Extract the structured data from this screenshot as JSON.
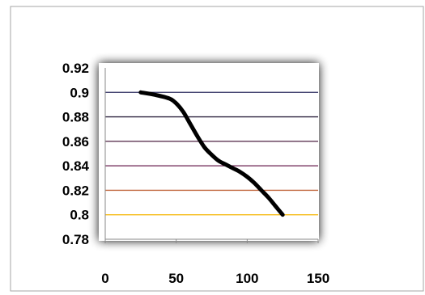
{
  "chart_data": {
    "type": "line",
    "title": "",
    "xlabel": "",
    "ylabel": "",
    "xlim": [
      0,
      150
    ],
    "ylim": [
      0.78,
      0.92
    ],
    "x_ticks": [
      0,
      50,
      100,
      150
    ],
    "x_tick_labels": [
      "0",
      "50",
      "100",
      "150"
    ],
    "y_ticks": [
      0.78,
      0.8,
      0.82,
      0.84,
      0.86,
      0.88,
      0.9,
      0.92
    ],
    "y_tick_labels": [
      "0.78",
      "0.8",
      "0.82",
      "0.84",
      "0.86",
      "0.88",
      "0.9",
      "0.92"
    ],
    "grid": true,
    "legend": "none",
    "series": [
      {
        "color": "#000000",
        "smooth": true,
        "x": [
          25,
          35,
          45,
          50,
          55,
          60,
          65,
          70,
          75,
          80,
          85,
          90,
          95,
          100,
          105,
          110,
          115,
          120,
          125
        ],
        "y": [
          0.9,
          0.898,
          0.895,
          0.891,
          0.884,
          0.874,
          0.864,
          0.855,
          0.849,
          0.844,
          0.841,
          0.838,
          0.835,
          0.831,
          0.826,
          0.82,
          0.814,
          0.807,
          0.8
        ]
      }
    ]
  },
  "colors": {
    "gridlines": [
      {
        "y": 0.9,
        "color": "#2b2b5e"
      },
      {
        "y": 0.88,
        "color": "#2f2440"
      },
      {
        "y": 0.86,
        "color": "#4d2142"
      },
      {
        "y": 0.84,
        "color": "#6a1f4f"
      },
      {
        "y": 0.82,
        "color": "#c0653a"
      },
      {
        "y": 0.8,
        "color": "#f5b400"
      }
    ],
    "frame": "#a6a6a6",
    "plot_area_shadow": "#000000"
  }
}
